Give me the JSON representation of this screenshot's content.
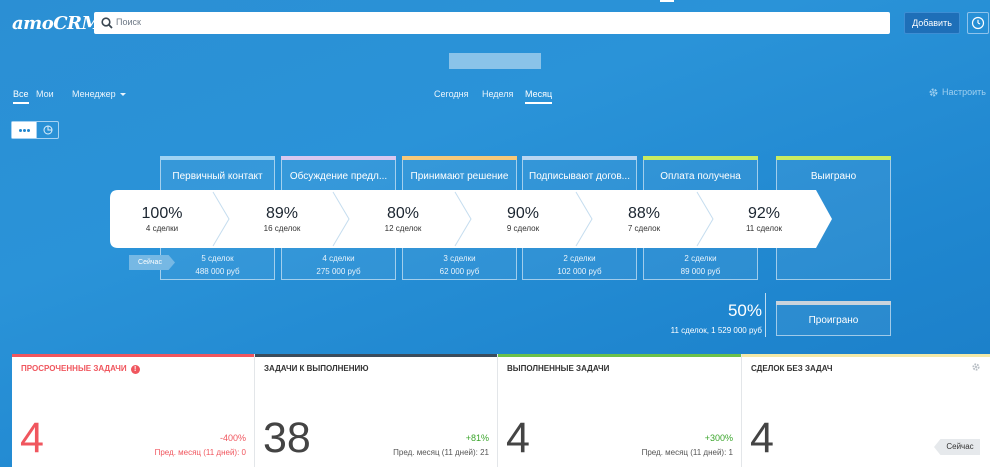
{
  "app": {
    "logo": "amoCRM."
  },
  "search": {
    "placeholder": "Поиск"
  },
  "header": {
    "add_label": "Добавить"
  },
  "nav": {
    "left_tabs": [
      {
        "label": "Все",
        "active": true
      },
      {
        "label": "Мои",
        "active": false
      }
    ],
    "manager_label": "Менеджер",
    "period_tabs": [
      {
        "label": "Сегодня",
        "active": false
      },
      {
        "label": "Неделя",
        "active": false
      },
      {
        "label": "Месяц",
        "active": true
      }
    ],
    "settings_label": "Настроить"
  },
  "pipeline": {
    "stages": [
      {
        "name": "Первичный контакт",
        "deals": "5 сделок",
        "sum": "488 000 руб",
        "color": "#9fd3f3"
      },
      {
        "name": "Обсуждение предл...",
        "deals": "4 сделки",
        "sum": "275 000 руб",
        "color": "#d8c8f0"
      },
      {
        "name": "Принимают решение",
        "deals": "3 сделки",
        "sum": "62 000 руб",
        "color": "#f6c97a"
      },
      {
        "name": "Подписывают догов...",
        "deals": "2 сделки",
        "sum": "102 000 руб",
        "color": "#b9d6f2"
      },
      {
        "name": "Оплата получена",
        "deals": "2 сделки",
        "sum": "89 000 руб",
        "color": "#c8ec62"
      },
      {
        "name": "Выиграно",
        "deals": "",
        "sum": "",
        "color": "#c8ec62"
      }
    ],
    "conversions": [
      {
        "pct": "100%",
        "deals": "4 сделки"
      },
      {
        "pct": "89%",
        "deals": "16 сделок"
      },
      {
        "pct": "80%",
        "deals": "12 сделок"
      },
      {
        "pct": "90%",
        "deals": "9 сделок"
      },
      {
        "pct": "88%",
        "deals": "7 сделок"
      },
      {
        "pct": "92%",
        "deals": "11 сделок"
      }
    ],
    "now_label": "Сейчас",
    "lost": {
      "pct": "50%",
      "sub": "11 сделок, 1 529 000 руб",
      "name": "Проиграно"
    }
  },
  "cards": [
    {
      "title": "ПРОСРОЧЕННЫЕ ЗАДАЧИ",
      "value": "4",
      "delta": "-400%",
      "prev": "Пред. месяц (11 дней): 0",
      "accent": "#f0565e",
      "value_color": "#f0565e",
      "delta_color": "#f0565e"
    },
    {
      "title": "ЗАДАЧИ К ВЫПОЛНЕНИЮ",
      "value": "38",
      "delta": "+81%",
      "prev": "Пред. месяц (11 дней): 21",
      "accent": "#3b4c5c",
      "value_color": "#444",
      "delta_color": "#3aa52b"
    },
    {
      "title": "ВЫПОЛНЕННЫЕ ЗАДАЧИ",
      "value": "4",
      "delta": "+300%",
      "prev": "Пред. месяц (11 дней): 1",
      "accent": "#6cc04a",
      "value_color": "#444",
      "delta_color": "#3aa52b"
    },
    {
      "title": "СДЕЛОК БЕЗ ЗАДАЧ",
      "value": "4",
      "delta": "",
      "prev": "",
      "accent": "#f3e9a8",
      "value_color": "#444",
      "delta_color": "#444"
    }
  ],
  "cards_now_label": "Сейчас"
}
